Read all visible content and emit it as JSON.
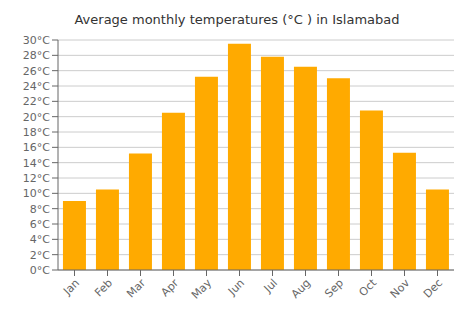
{
  "chart_data": {
    "type": "bar",
    "title": "Average monthly temperatures (°C ) in Islamabad",
    "categories": [
      "Jan",
      "Feb",
      "Mar",
      "Apr",
      "May",
      "Jun",
      "Jul",
      "Aug",
      "Sep",
      "Oct",
      "Nov",
      "Dec"
    ],
    "values": [
      9,
      10.5,
      15.2,
      20.5,
      25.2,
      29.5,
      27.8,
      26.5,
      25.0,
      20.8,
      15.3,
      10.5
    ],
    "color": "#FFAA00",
    "ylim": [
      0,
      30
    ],
    "yticks": [
      {
        "value": 0,
        "label": "0°C"
      },
      {
        "value": 2,
        "label": "2°C"
      },
      {
        "value": 4,
        "label": "4°C"
      },
      {
        "value": 6,
        "label": "6°C"
      },
      {
        "value": 8,
        "label": "8°C"
      },
      {
        "value": 10,
        "label": "10°C"
      },
      {
        "value": 12,
        "label": "12°C"
      },
      {
        "value": 14,
        "label": "14°C"
      },
      {
        "value": 16,
        "label": "16°C"
      },
      {
        "value": 18,
        "label": "18°C"
      },
      {
        "value": 20,
        "label": "20°C"
      },
      {
        "value": 22,
        "label": "22°C"
      },
      {
        "value": 24,
        "label": "24°C"
      },
      {
        "value": 26,
        "label": "26°C"
      },
      {
        "value": 28,
        "label": "28°C"
      },
      {
        "value": 30,
        "label": "30°C"
      }
    ],
    "grid": true
  }
}
